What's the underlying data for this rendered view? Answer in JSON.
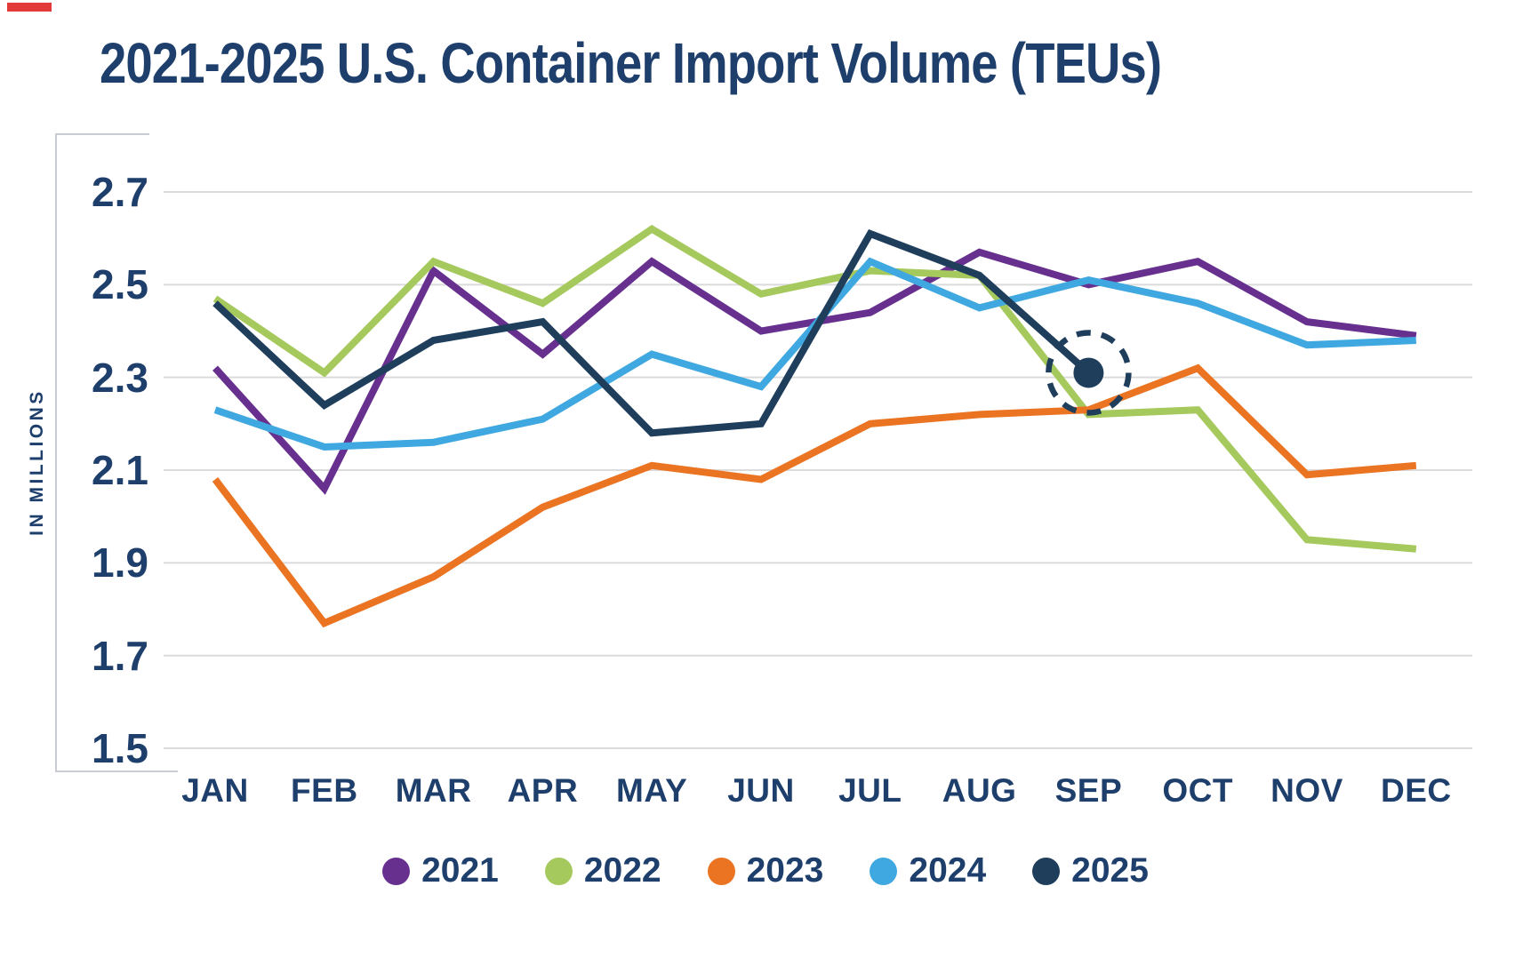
{
  "title": "2021-2025 U.S. Container Import Volume (TEUs)",
  "y_axis_label": "IN MILLIONS",
  "legend": {
    "position": "bottom",
    "items": [
      "2021",
      "2022",
      "2023",
      "2024",
      "2025"
    ]
  },
  "chart_data": {
    "type": "line",
    "title": "2021-2025 U.S. Container Import Volume (TEUs)",
    "xlabel": "",
    "ylabel": "IN MILLIONS",
    "categories": [
      "JAN",
      "FEB",
      "MAR",
      "APR",
      "MAY",
      "JUN",
      "JUL",
      "AUG",
      "SEP",
      "OCT",
      "NOV",
      "DEC"
    ],
    "ylim": [
      1.5,
      2.7
    ],
    "y_ticks": [
      2.7,
      2.5,
      2.3,
      2.1,
      1.9,
      1.7,
      1.5
    ],
    "grid": "horizontal",
    "legend_position": "bottom",
    "series": [
      {
        "name": "2021",
        "color": "#67308F",
        "values": [
          2.32,
          2.06,
          2.53,
          2.35,
          2.55,
          2.4,
          2.44,
          2.57,
          2.5,
          2.55,
          2.42,
          2.39
        ]
      },
      {
        "name": "2022",
        "color": "#A5C95C",
        "values": [
          2.47,
          2.31,
          2.55,
          2.46,
          2.62,
          2.48,
          2.53,
          2.52,
          2.22,
          2.23,
          1.95,
          1.93
        ]
      },
      {
        "name": "2023",
        "color": "#EB7423",
        "values": [
          2.08,
          1.77,
          1.87,
          2.02,
          2.11,
          2.08,
          2.2,
          2.22,
          2.23,
          2.32,
          2.09,
          2.11
        ]
      },
      {
        "name": "2024",
        "color": "#3FA8E0",
        "values": [
          2.23,
          2.15,
          2.16,
          2.21,
          2.35,
          2.28,
          2.55,
          2.45,
          2.51,
          2.46,
          2.37,
          2.38
        ]
      },
      {
        "name": "2025",
        "color": "#1F3E5C",
        "values": [
          2.46,
          2.24,
          2.38,
          2.42,
          2.18,
          2.2,
          2.61,
          2.52,
          2.31,
          null,
          null,
          null
        ]
      }
    ],
    "highlight": {
      "series": "2025",
      "category": "SEP",
      "value": 2.31,
      "style": "filled-dot-with-dashed-circle"
    }
  },
  "colors": {
    "text": "#1E3F6C",
    "gridline": "#DBDBDB",
    "axis_bracket": "#C9CCD3",
    "background": "#FFFFFF",
    "artifact_red": "#E23B3B"
  }
}
